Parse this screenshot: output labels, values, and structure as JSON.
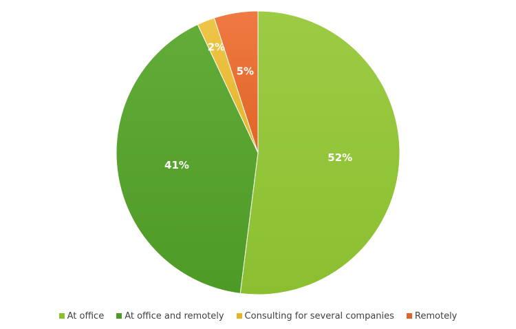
{
  "chart_data": {
    "type": "pie",
    "categories": [
      "At office",
      "At office and remotely",
      "Consulting for several companies",
      "Remotely"
    ],
    "values": [
      52,
      41,
      2,
      5
    ],
    "value_labels": [
      "52%",
      "41%",
      "2%",
      "5%"
    ],
    "colors": [
      "#8BBF30",
      "#4E9A26",
      "#E3B52C",
      "#E06425"
    ],
    "gradient_light": [
      "#9CCB44",
      "#62AC3A",
      "#EFC548",
      "#EF7A42"
    ],
    "start_angle_deg": 0,
    "direction": "clockwise",
    "legend_position": "bottom"
  }
}
